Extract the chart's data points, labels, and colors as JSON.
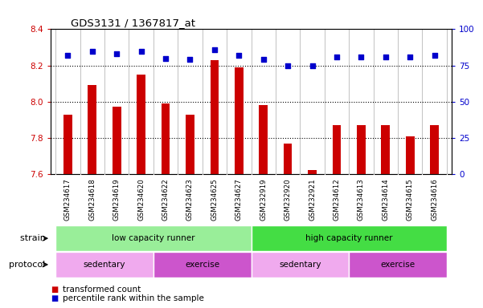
{
  "title": "GDS3131 / 1367817_at",
  "samples": [
    "GSM234617",
    "GSM234618",
    "GSM234619",
    "GSM234620",
    "GSM234622",
    "GSM234623",
    "GSM234625",
    "GSM234627",
    "GSM232919",
    "GSM232920",
    "GSM232921",
    "GSM234612",
    "GSM234613",
    "GSM234614",
    "GSM234615",
    "GSM234616"
  ],
  "bar_values": [
    7.93,
    8.09,
    7.97,
    8.15,
    7.99,
    7.93,
    8.23,
    8.19,
    7.98,
    7.77,
    7.62,
    7.87,
    7.87,
    7.87,
    7.81,
    7.87
  ],
  "dot_values": [
    82,
    85,
    83,
    85,
    80,
    79,
    86,
    82,
    79,
    75,
    75,
    81,
    81,
    81,
    81,
    82
  ],
  "ylim_left": [
    7.6,
    8.4
  ],
  "ylim_right": [
    0,
    100
  ],
  "yticks_left": [
    7.6,
    7.8,
    8.0,
    8.2,
    8.4
  ],
  "yticks_right": [
    0,
    25,
    50,
    75,
    100
  ],
  "bar_color": "#cc0000",
  "dot_color": "#0000cc",
  "grid_lines": [
    7.8,
    8.0,
    8.2
  ],
  "strain_groups": [
    {
      "label": "low capacity runner",
      "start": 0,
      "end": 7,
      "color": "#99ee99"
    },
    {
      "label": "high capacity runner",
      "start": 8,
      "end": 15,
      "color": "#44dd44"
    }
  ],
  "protocol_groups": [
    {
      "label": "sedentary",
      "start": 0,
      "end": 3,
      "color": "#f0aaee"
    },
    {
      "label": "exercise",
      "start": 4,
      "end": 7,
      "color": "#cc55cc"
    },
    {
      "label": "sedentary",
      "start": 8,
      "end": 11,
      "color": "#f0aaee"
    },
    {
      "label": "exercise",
      "start": 12,
      "end": 15,
      "color": "#cc55cc"
    }
  ],
  "legend_items": [
    {
      "label": "transformed count",
      "color": "#cc0000"
    },
    {
      "label": "percentile rank within the sample",
      "color": "#0000cc"
    }
  ],
  "strain_label": "strain",
  "protocol_label": "protocol",
  "background_color": "#ffffff",
  "tick_box_color": "#cccccc",
  "tick_label_color_left": "#cc0000",
  "tick_label_color_right": "#0000cc"
}
